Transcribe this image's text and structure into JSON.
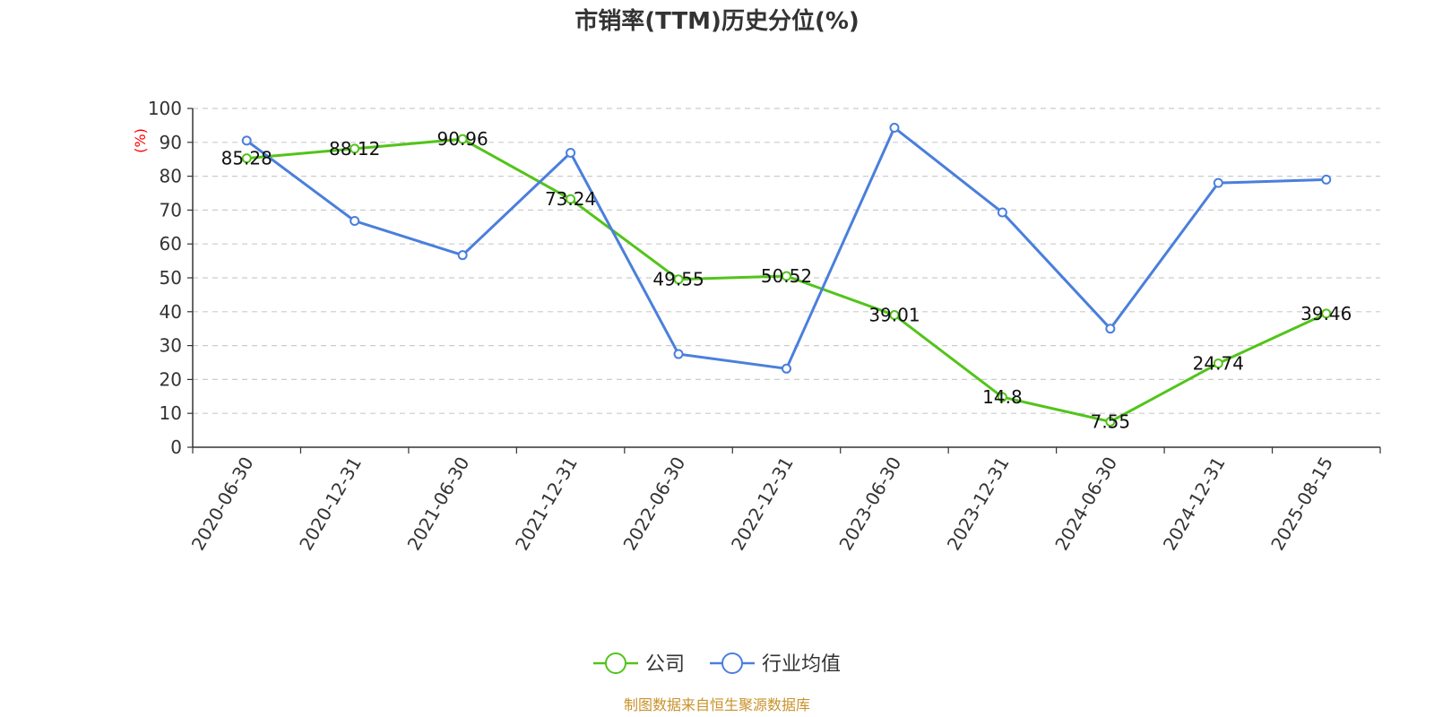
{
  "chart_data": {
    "type": "line",
    "title": "市销率(TTM)历史分位(%)",
    "ylabel": "(%)",
    "ylim": [
      0,
      100
    ],
    "yticks": [
      0,
      10,
      20,
      30,
      40,
      50,
      60,
      70,
      80,
      90,
      100
    ],
    "categories": [
      "2020-06-30",
      "2020-12-31",
      "2021-06-30",
      "2021-12-31",
      "2022-06-30",
      "2022-12-31",
      "2023-06-30",
      "2023-12-31",
      "2024-06-30",
      "2024-12-31",
      "2025-08-15"
    ],
    "series": [
      {
        "name": "公司",
        "color": "#52c41a",
        "values": [
          85.28,
          88.12,
          90.96,
          73.24,
          49.55,
          50.52,
          39.01,
          14.8,
          7.55,
          24.74,
          39.46
        ],
        "labels": [
          "85.28",
          "88.12",
          "90.96",
          "73.24",
          "49.55",
          "50.52",
          "39.01",
          "14.8",
          "7.55",
          "24.74",
          "39.46"
        ]
      },
      {
        "name": "行业均值",
        "color": "#4a7fdc",
        "values": [
          90.5,
          66.8,
          56.7,
          86.9,
          27.5,
          23.2,
          94.3,
          69.3,
          35.0,
          78.0,
          79.0
        ]
      }
    ],
    "grid": true,
    "legend_position": "bottom-center",
    "source": "制图数据来自恒生聚源数据库"
  }
}
